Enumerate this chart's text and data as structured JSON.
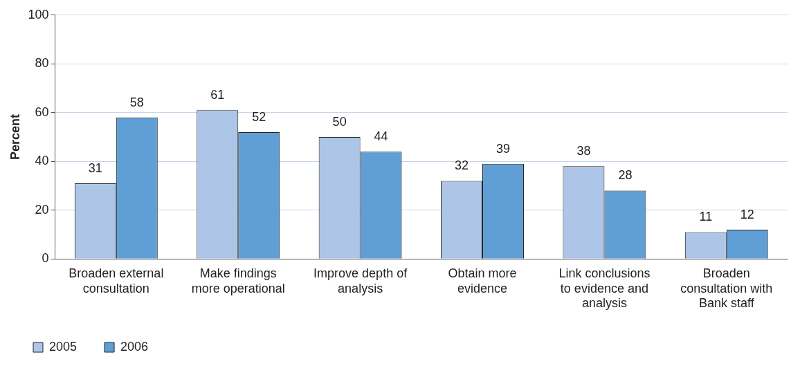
{
  "chart_data": {
    "type": "bar",
    "ylabel": "Percent",
    "categories": [
      "Broaden external consultation",
      "Make findings more operational",
      "Improve depth of analysis",
      "Obtain more evidence",
      "Link conclusions to evidence and analysis",
      "Broaden consultation with Bank staff"
    ],
    "series": [
      {
        "name": "2005",
        "color": "#adc6e8",
        "values": [
          31,
          61,
          50,
          32,
          38,
          11
        ]
      },
      {
        "name": "2006",
        "color": "#5f9fd6",
        "values": [
          58,
          52,
          44,
          39,
          28,
          12
        ]
      }
    ],
    "ylim": [
      0,
      100
    ],
    "yticks": [
      0,
      20,
      40,
      60,
      80,
      100
    ],
    "grid": "y",
    "legend": "bottom left",
    "data_labels": true
  }
}
